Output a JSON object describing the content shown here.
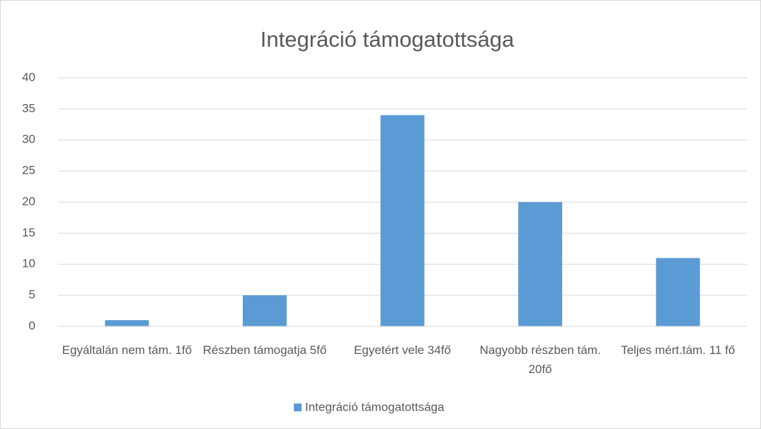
{
  "chart_data": {
    "type": "bar",
    "title": "Integráció támogatottsága",
    "categories": [
      "Egyáltalán nem tám. 1fő",
      "Részben támogatja 5fő",
      "Egyetért vele 34fő",
      "Nagyobb részben tám. 20fő",
      "Teljes mért.tám. 11 fő"
    ],
    "series": [
      {
        "name": "Integráció támogatottsága",
        "color": "#5b9bd5",
        "values": [
          1,
          5,
          34,
          20,
          11
        ]
      }
    ],
    "ylim": [
      0,
      40
    ],
    "yticks": [
      0,
      5,
      10,
      15,
      20,
      25,
      30,
      35,
      40
    ],
    "grid": true,
    "legend": "bottom"
  }
}
